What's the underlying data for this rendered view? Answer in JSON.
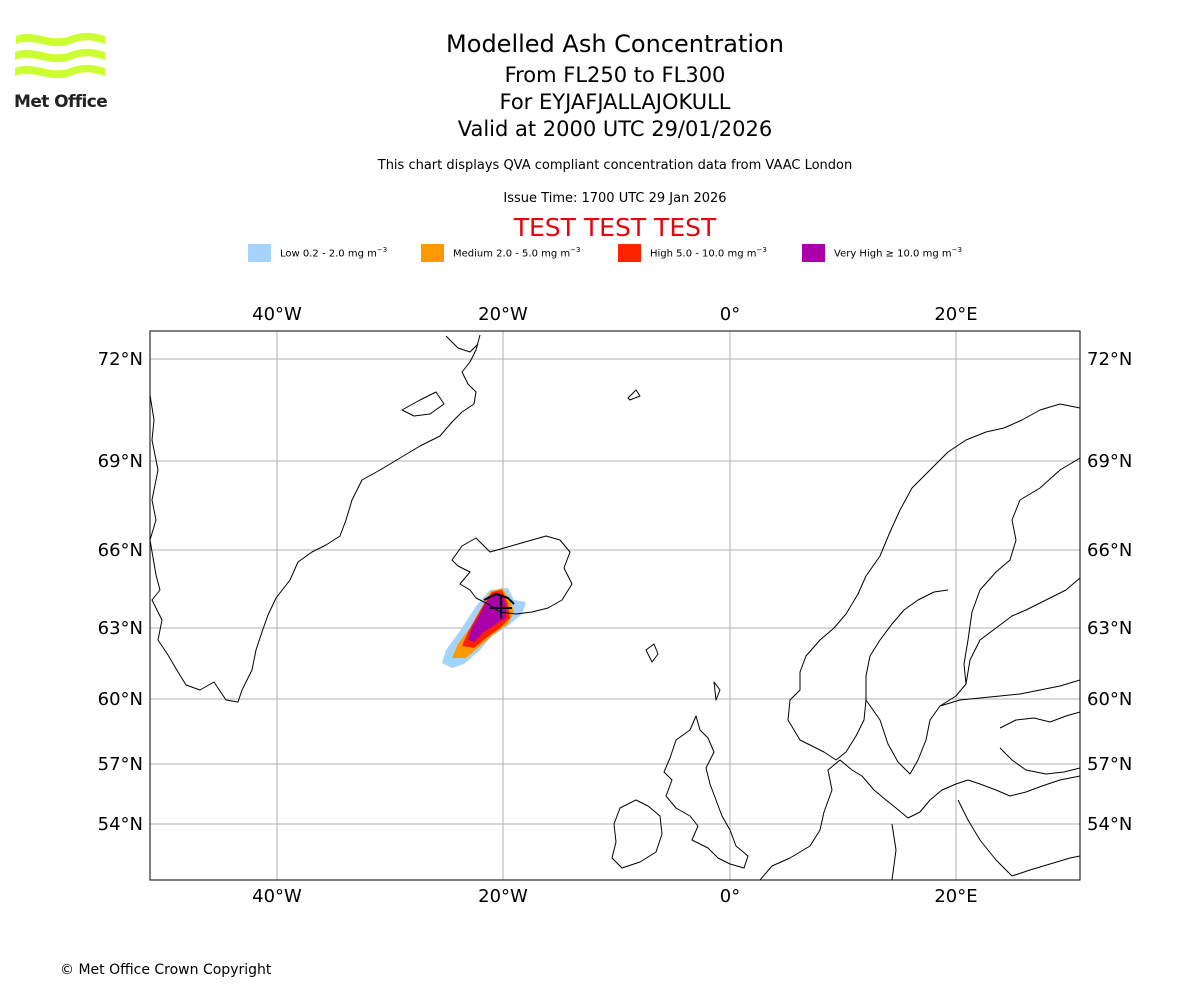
{
  "header": {
    "logo_text": "Met Office",
    "title": "Modelled Ash Concentration",
    "levels": "From FL250 to FL300",
    "volcano": "For EYJAFJALLAJOKULL",
    "valid": "Valid at 2000 UTC 29/01/2026",
    "description": "This chart displays QVA compliant concentration data from VAAC London",
    "issue_time": "Issue Time: 1700 UTC 29 Jan 2026",
    "test_banner": "TEST TEST TEST"
  },
  "legend": [
    {
      "label": "Low 0.2 - 2.0 mg m",
      "unit_exp": "−3",
      "color": "#a5d3fb"
    },
    {
      "label": "Medium 2.0 - 5.0 mg m",
      "unit_exp": "−3",
      "color": "#ff9900"
    },
    {
      "label": "High 5.0 - 10.0 mg m",
      "unit_exp": "−3",
      "color": "#ff2200"
    },
    {
      "label": "Very High  ≥  10.0 mg m",
      "unit_exp": "−3",
      "color": "#aa00aa"
    }
  ],
  "map": {
    "lon_labels": [
      "40°W",
      "20°W",
      "0°",
      "20°E"
    ],
    "lat_labels": [
      "72°N",
      "69°N",
      "66°N",
      "63°N",
      "60°N",
      "57°N",
      "54°N"
    ],
    "colors": {
      "grid": "#b0b0b0",
      "coast": "#000000",
      "logo": "#ccff33"
    }
  },
  "footer": {
    "copyright": "© Met Office Crown Copyright"
  }
}
